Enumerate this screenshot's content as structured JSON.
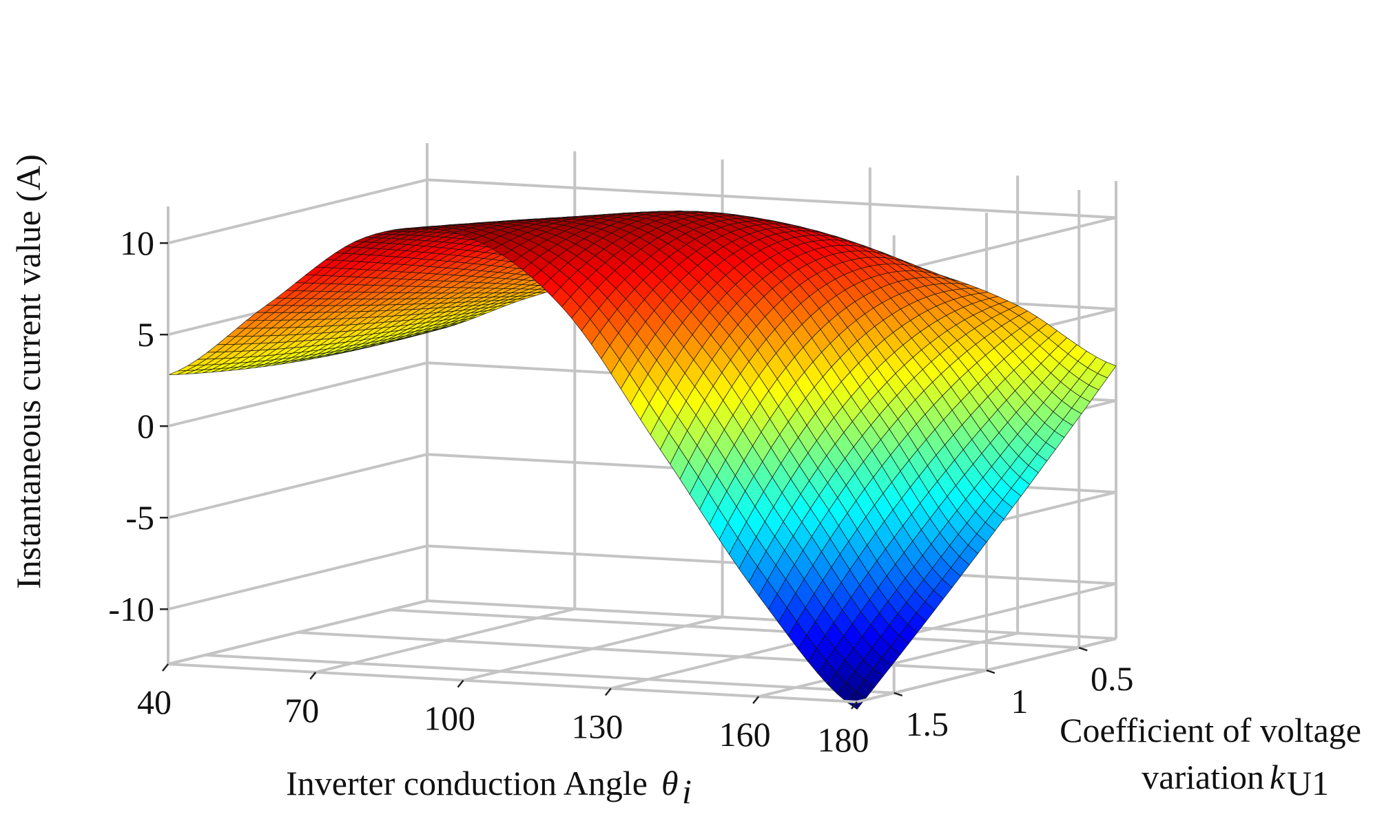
{
  "chart_data": {
    "type": "surface3d",
    "title": "",
    "x_axis": {
      "label": "Inverter conduction Angle",
      "symbol": "θ",
      "symbol_sub": "i",
      "range": [
        40,
        180
      ],
      "ticks": [
        40,
        70,
        100,
        130,
        160,
        180
      ],
      "tick_labels": [
        "40",
        "70",
        "100",
        "130",
        "160",
        "180"
      ]
    },
    "y_axis": {
      "label_line1": "Coefficient of voltage",
      "label_line2": "variation",
      "symbol": "k",
      "symbol_sub": "U1",
      "range": [
        0.3,
        1.7
      ],
      "ticks": [
        0.5,
        1,
        1.5
      ],
      "tick_labels": [
        "0.5",
        "1",
        "1.5"
      ]
    },
    "z_axis": {
      "label": "Instantaneous current value (A)",
      "range": [
        -13,
        12
      ],
      "ticks": [
        10,
        5,
        0,
        -5,
        -10
      ],
      "tick_labels": [
        "10",
        "5",
        "0",
        "-5",
        "-10"
      ]
    },
    "grid": true,
    "colormap": "jet",
    "surface_samples": {
      "theta": [
        40,
        60,
        80,
        100,
        120,
        140,
        160,
        180
      ],
      "k": [
        0.3,
        1.0,
        1.7
      ],
      "current_at_k_0.3": [
        1.7,
        3.8,
        5.6,
        6.7,
        7.2,
        6.6,
        4.9,
        1.9
      ],
      "current_at_k_1.0": [
        1.8,
        5.2,
        8.6,
        10.5,
        10.9,
        8.0,
        1.2,
        -6.0
      ],
      "current_at_k_1.7": [
        2.8,
        6.9,
        10.9,
        11.3,
        7.7,
        0.2,
        -7.5,
        -13.4
      ]
    }
  }
}
